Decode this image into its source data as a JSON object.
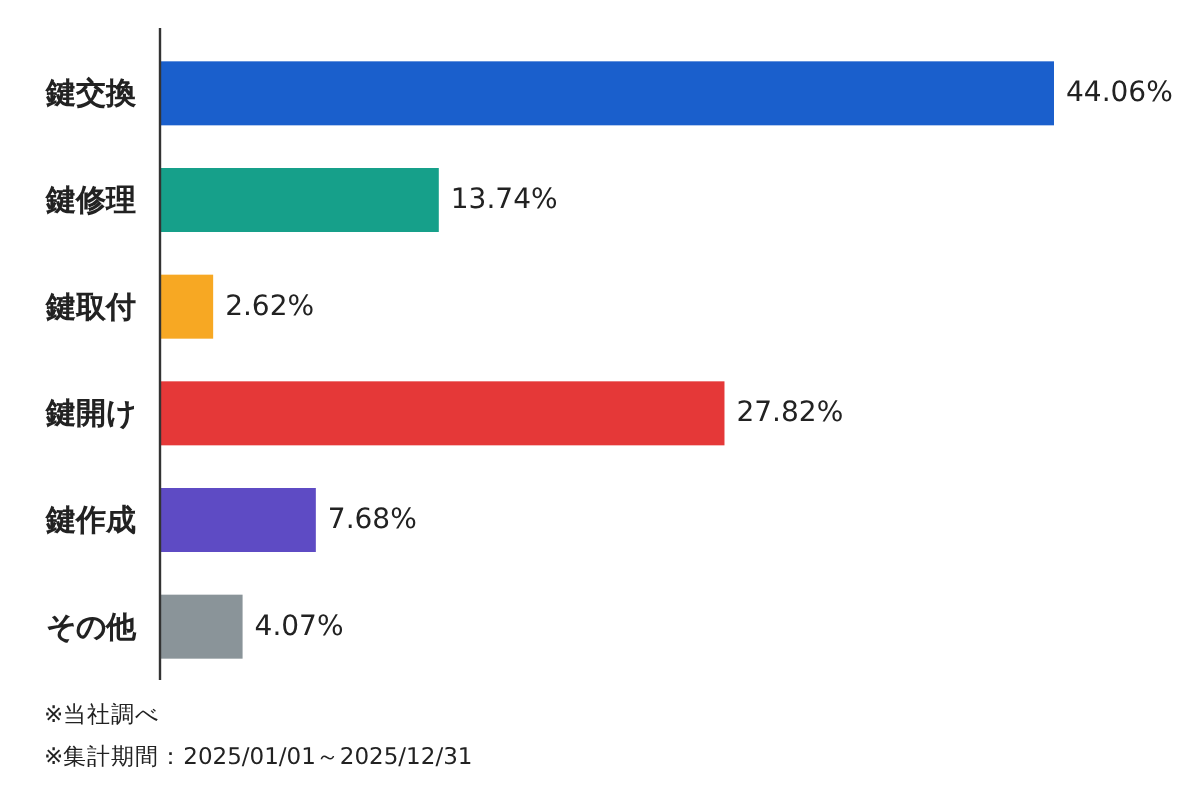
{
  "chart_data": {
    "type": "bar",
    "orientation": "horizontal",
    "categories": [
      "鍵交換",
      "鍵修理",
      "鍵取付",
      "鍵開け",
      "鍵作成",
      "その他"
    ],
    "values": [
      44.06,
      13.74,
      2.62,
      27.82,
      7.68,
      4.07
    ],
    "value_labels": [
      "44.06%",
      "13.74%",
      "2.62%",
      "27.82%",
      "7.68%",
      "4.07%"
    ],
    "colors": [
      "#1a5fcc",
      "#16a08a",
      "#f7a823",
      "#e53838",
      "#5e4bc4",
      "#8a9499"
    ],
    "annotations": [
      "※当社調べ",
      "※集計期間：2025/01/01～2025/12/31"
    ]
  }
}
